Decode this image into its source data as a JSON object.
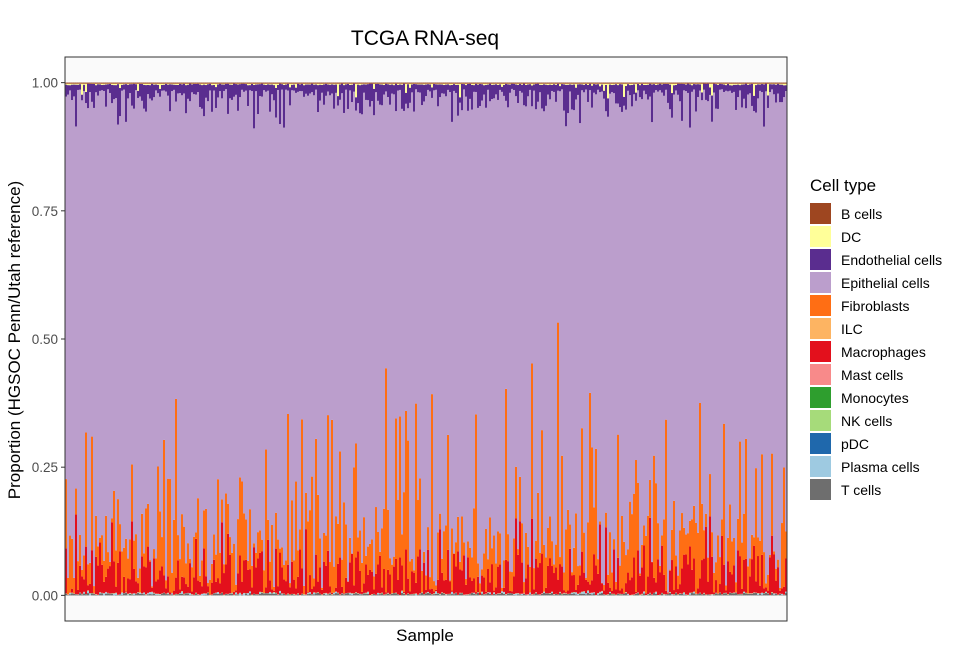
{
  "chart_data": {
    "type": "bar",
    "stacked": true,
    "title": "TCGA RNA-seq",
    "xlabel": "Sample",
    "ylabel": "Proportion (HGSOC Penn/Utah reference)",
    "ylim": [
      -0.05,
      1.05
    ],
    "yticks": [
      0.0,
      0.25,
      0.5,
      0.75,
      1.0
    ],
    "ytick_labels": [
      "0.00",
      "0.25",
      "0.50",
      "0.75",
      "1.00"
    ],
    "grid": true,
    "legend": {
      "title": "Cell type",
      "position": "right",
      "entries": [
        {
          "name": "B cells",
          "color": "#9E4620"
        },
        {
          "name": "DC",
          "color": "#FFFF99"
        },
        {
          "name": "Endothelial cells",
          "color": "#5A2D8F"
        },
        {
          "name": "Epithelial cells",
          "color": "#BB9ECC"
        },
        {
          "name": "Fibroblasts",
          "color": "#FF6E14"
        },
        {
          "name": "ILC",
          "color": "#FDB462"
        },
        {
          "name": "Macrophages",
          "color": "#E3101C"
        },
        {
          "name": "Mast cells",
          "color": "#F88A8A"
        },
        {
          "name": "Monocytes",
          "color": "#2E9E2E"
        },
        {
          "name": "NK cells",
          "color": "#A6DB7A"
        },
        {
          "name": "pDC",
          "color": "#1F68AC"
        },
        {
          "name": "Plasma cells",
          "color": "#9ECAE1"
        },
        {
          "name": "T cells",
          "color": "#6E6E6E"
        }
      ]
    },
    "n_samples": 361,
    "categories_note": "individual TCGA samples, unlabeled",
    "series_order": [
      "T cells",
      "Plasma cells",
      "pDC",
      "NK cells",
      "Monocytes",
      "Mast cells",
      "ILC",
      "Macrophages",
      "Fibroblasts",
      "Epithelial cells",
      "Endothelial cells",
      "DC",
      "B cells"
    ],
    "summary": {
      "Epithelial cells": {
        "typical_range": [
          0.45,
          0.97
        ]
      },
      "Fibroblasts": {
        "typical_range": [
          0.0,
          0.54
        ],
        "max": 0.54
      },
      "Macrophages": {
        "typical_range": [
          0.0,
          0.17
        ],
        "max": 0.17
      },
      "Endothelial cells": {
        "typical_range": [
          0.005,
          0.09
        ]
      },
      "DC": {
        "typical_range": [
          0.0,
          0.03
        ]
      },
      "B cells": {
        "typical_range": [
          0.0,
          0.003
        ]
      },
      "T cells": {
        "typical_range": [
          0.0,
          0.006
        ]
      },
      "Plasma cells": {
        "typical_range": [
          0.0,
          0.004
        ]
      }
    },
    "fibroblast_peaks": [
      {
        "sample": 38,
        "value": 0.155
      },
      {
        "sample": 52,
        "value": 0.225
      },
      {
        "sample": 55,
        "value": 0.38
      },
      {
        "sample": 76,
        "value": 0.22
      },
      {
        "sample": 88,
        "value": 0.22
      },
      {
        "sample": 100,
        "value": 0.28
      },
      {
        "sample": 111,
        "value": 0.35
      },
      {
        "sample": 118,
        "value": 0.34
      },
      {
        "sample": 125,
        "value": 0.3
      },
      {
        "sample": 133,
        "value": 0.34
      },
      {
        "sample": 145,
        "value": 0.29
      },
      {
        "sample": 160,
        "value": 0.44
      },
      {
        "sample": 175,
        "value": 0.37
      },
      {
        "sample": 183,
        "value": 0.39
      },
      {
        "sample": 191,
        "value": 0.31
      },
      {
        "sample": 205,
        "value": 0.35
      },
      {
        "sample": 220,
        "value": 0.4
      },
      {
        "sample": 233,
        "value": 0.45
      },
      {
        "sample": 246,
        "value": 0.53
      },
      {
        "sample": 262,
        "value": 0.39
      },
      {
        "sample": 276,
        "value": 0.31
      },
      {
        "sample": 285,
        "value": 0.26
      },
      {
        "sample": 300,
        "value": 0.34
      },
      {
        "sample": 317,
        "value": 0.37
      },
      {
        "sample": 329,
        "value": 0.33
      },
      {
        "sample": 340,
        "value": 0.3
      },
      {
        "sample": 348,
        "value": 0.27
      }
    ]
  }
}
